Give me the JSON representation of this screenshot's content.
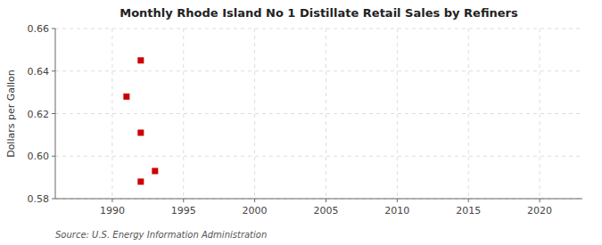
{
  "chart_data": {
    "type": "scatter",
    "title": "Monthly Rhode Island No 1 Distillate Retail Sales by Refiners",
    "ylabel": "Dollars per Gallon",
    "source": "Source: U.S. Energy Information Administration",
    "x": [
      1991,
      1992,
      1992,
      1992,
      1993
    ],
    "values": [
      0.628,
      0.645,
      0.611,
      0.588,
      0.593
    ],
    "color": "#cc0000",
    "marker": "square",
    "xlim": [
      1986,
      2023
    ],
    "ylim": [
      0.58,
      0.66
    ],
    "xticks": [
      1990,
      1995,
      2000,
      2005,
      2010,
      2015,
      2020
    ],
    "yticks": [
      0.58,
      {
        "value": 0.6,
        "label": "0.60"
      },
      0.62,
      0.64,
      0.66
    ],
    "grid": true
  }
}
